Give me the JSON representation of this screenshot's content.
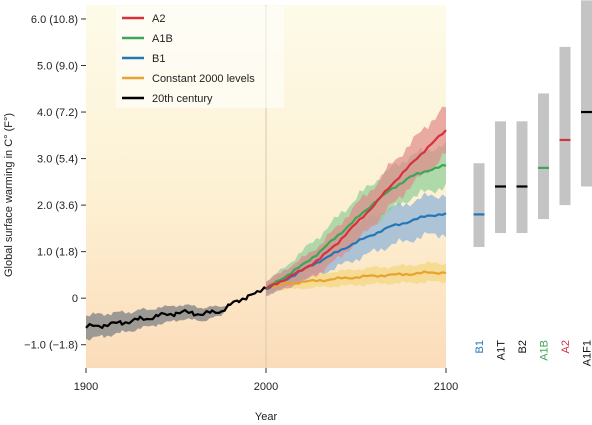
{
  "chart_data": [
    {
      "type": "line",
      "title": "",
      "xlabel": "Year",
      "ylabel": "Global surface warming in C° (F°)",
      "xlim": [
        1900,
        2100
      ],
      "ylim": [
        -1.5,
        6.3
      ],
      "x_ticks": [
        1900,
        2000,
        2100
      ],
      "y_ticks": [
        {
          "value": -1.0,
          "label": "−1.0 (−1.8)"
        },
        {
          "value": 0,
          "label": "0"
        },
        {
          "value": 1.0,
          "label": "1.0 (1.8)"
        },
        {
          "value": 2.0,
          "label": "2.0 (3.6)"
        },
        {
          "value": 3.0,
          "label": "3.0 (5.4)"
        },
        {
          "value": 4.0,
          "label": "4.0 (7.2)"
        },
        {
          "value": 5.0,
          "label": "5.0 (9.0)"
        },
        {
          "value": 6.0,
          "label": "6.0 (10.8)"
        }
      ],
      "legend_position": "top-left",
      "series": [
        {
          "name": "A2",
          "color": "#d6323e",
          "band_color": "#e08a8a",
          "x": [
            2000,
            2010,
            2020,
            2030,
            2040,
            2050,
            2060,
            2070,
            2080,
            2090,
            2100
          ],
          "y": [
            0.2,
            0.4,
            0.6,
            0.85,
            1.2,
            1.6,
            2.0,
            2.45,
            2.85,
            3.25,
            3.6
          ],
          "band": [
            0.15,
            0.2,
            0.25,
            0.3,
            0.35,
            0.4,
            0.4,
            0.45,
            0.45,
            0.5,
            0.5
          ]
        },
        {
          "name": "A1B",
          "color": "#3aa657",
          "band_color": "#8fce98",
          "x": [
            2000,
            2010,
            2020,
            2030,
            2040,
            2050,
            2060,
            2070,
            2080,
            2090,
            2100
          ],
          "y": [
            0.2,
            0.45,
            0.7,
            1.0,
            1.35,
            1.7,
            2.05,
            2.35,
            2.6,
            2.75,
            2.85
          ],
          "band": [
            0.15,
            0.2,
            0.3,
            0.35,
            0.4,
            0.45,
            0.45,
            0.45,
            0.45,
            0.45,
            0.45
          ]
        },
        {
          "name": "B1",
          "color": "#2476b8",
          "band_color": "#8ab1d8",
          "x": [
            2000,
            2010,
            2020,
            2030,
            2040,
            2050,
            2060,
            2070,
            2080,
            2090,
            2100
          ],
          "y": [
            0.2,
            0.38,
            0.6,
            0.8,
            1.0,
            1.2,
            1.38,
            1.55,
            1.65,
            1.78,
            1.8
          ],
          "band": [
            0.12,
            0.18,
            0.22,
            0.28,
            0.32,
            0.36,
            0.38,
            0.4,
            0.4,
            0.42,
            0.42
          ]
        },
        {
          "name": "Constant 2000 levels",
          "color": "#e7a232",
          "band_color": "#f4d57c",
          "x": [
            2000,
            2010,
            2020,
            2030,
            2040,
            2050,
            2060,
            2070,
            2080,
            2090,
            2100
          ],
          "y": [
            0.22,
            0.3,
            0.35,
            0.38,
            0.42,
            0.45,
            0.48,
            0.5,
            0.52,
            0.55,
            0.55
          ],
          "band": [
            0.1,
            0.12,
            0.14,
            0.15,
            0.16,
            0.17,
            0.18,
            0.18,
            0.19,
            0.2,
            0.2
          ]
        },
        {
          "name": "20th century",
          "color": "#000000",
          "band_color": "#8c8c8c",
          "x": [
            1900,
            1905,
            1910,
            1915,
            1920,
            1925,
            1930,
            1935,
            1940,
            1945,
            1950,
            1955,
            1960,
            1965,
            1970,
            1975,
            1980,
            1985,
            1990,
            1995,
            2000
          ],
          "y": [
            -0.62,
            -0.6,
            -0.58,
            -0.55,
            -0.52,
            -0.5,
            -0.45,
            -0.43,
            -0.38,
            -0.35,
            -0.32,
            -0.3,
            -0.32,
            -0.35,
            -0.3,
            -0.28,
            -0.15,
            -0.05,
            0.05,
            0.1,
            0.25
          ],
          "band": [
            0.25,
            0.25,
            0.24,
            0.23,
            0.22,
            0.2,
            0.2,
            0.18,
            0.18,
            0.17,
            0.16,
            0.15,
            0.15,
            0.14,
            0.12,
            0.1,
            0,
            0,
            0,
            0,
            0
          ]
        }
      ]
    },
    {
      "type": "range-bars",
      "title": "",
      "scenarios": [
        {
          "label": "B1",
          "label_color": "#2476b8",
          "low": 1.1,
          "high": 2.9,
          "best": 1.8,
          "marker_color": "#2476b8"
        },
        {
          "label": "A1T",
          "label_color": "#111111",
          "low": 1.4,
          "high": 3.8,
          "best": 2.4,
          "marker_color": "#000000"
        },
        {
          "label": "B2",
          "label_color": "#111111",
          "low": 1.4,
          "high": 3.8,
          "best": 2.4,
          "marker_color": "#000000"
        },
        {
          "label": "A1B",
          "label_color": "#3aa657",
          "low": 1.7,
          "high": 4.4,
          "best": 2.8,
          "marker_color": "#3aa657"
        },
        {
          "label": "A2",
          "label_color": "#d6323e",
          "low": 2.0,
          "high": 5.4,
          "best": 3.4,
          "marker_color": "#d6323e"
        },
        {
          "label": "A1F1",
          "label_color": "#111111",
          "low": 2.4,
          "high": 6.4,
          "best": 4.0,
          "marker_color": "#000000"
        }
      ]
    }
  ]
}
